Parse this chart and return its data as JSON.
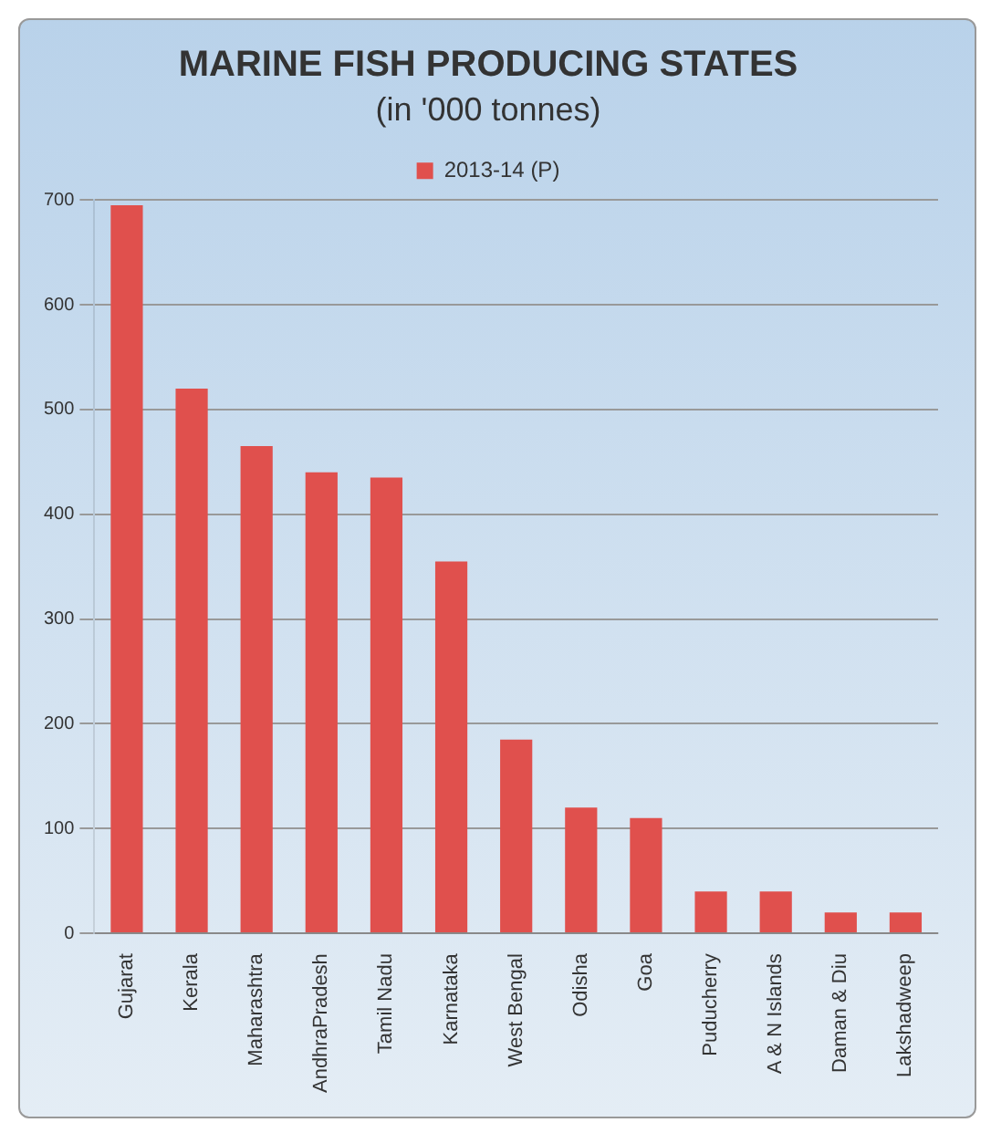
{
  "chart_data": {
    "type": "bar",
    "title": "MARINE FISH PRODUCING STATES",
    "subtitle": "(in '000 tonnes)",
    "categories": [
      "Gujarat",
      "Kerala",
      "Maharashtra",
      "AndhraPradesh",
      "Tamil Nadu",
      "Karnataka",
      "West Bengal",
      "Odisha",
      "Goa",
      "Puducherry",
      "A & N Islands",
      "Daman & Diu",
      "Lakshadweep"
    ],
    "series": [
      {
        "name": "2013-14 (P)",
        "color": "#e0504d",
        "values": [
          695,
          520,
          465,
          440,
          435,
          355,
          185,
          120,
          110,
          40,
          40,
          20,
          20
        ]
      }
    ],
    "ylim": [
      0,
      700
    ],
    "yticks": [
      0,
      100,
      200,
      300,
      400,
      500,
      600,
      700
    ],
    "grid": "y",
    "legend": "top"
  }
}
